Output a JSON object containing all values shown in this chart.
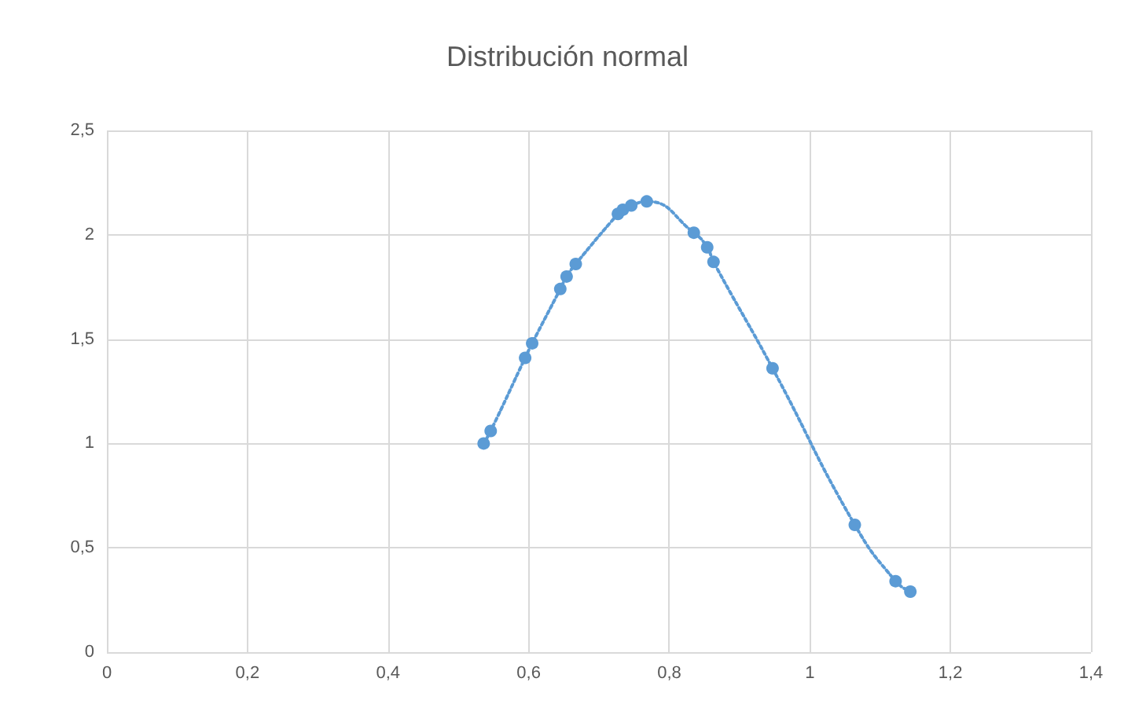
{
  "chart_data": {
    "type": "line",
    "title": "Distribución normal",
    "x": [
      0.536,
      0.546,
      0.595,
      0.605,
      0.645,
      0.654,
      0.667,
      0.727,
      0.734,
      0.746,
      0.768,
      0.835,
      0.854,
      0.863,
      0.947,
      1.064,
      1.122,
      1.143
    ],
    "series": [
      {
        "color": "#5b9bd5",
        "values": [
          1.0,
          1.06,
          1.41,
          1.48,
          1.74,
          1.8,
          1.86,
          2.1,
          2.12,
          2.14,
          2.16,
          2.01,
          1.94,
          1.87,
          1.36,
          0.61,
          0.34,
          0.29
        ]
      }
    ],
    "xlim": [
      0,
      1.4
    ],
    "xticks": [
      0,
      {
        "value": 0.2,
        "label": "0,2"
      },
      {
        "value": 0.4,
        "label": "0,4"
      },
      {
        "value": 0.6,
        "label": "0,6"
      },
      {
        "value": 0.8,
        "label": "0,8"
      },
      1,
      {
        "value": 1.2,
        "label": "1,2"
      },
      {
        "value": 1.4,
        "label": "1,4"
      }
    ],
    "ylim": [
      0,
      2.5
    ],
    "yticks": [
      0,
      {
        "value": 0.5,
        "label": "0,5"
      },
      1,
      {
        "value": 1.5,
        "label": "1,5"
      },
      2,
      {
        "value": 2.5,
        "label": "2,5"
      }
    ],
    "grid": true,
    "marker": "circle",
    "line_style": "dotted"
  }
}
